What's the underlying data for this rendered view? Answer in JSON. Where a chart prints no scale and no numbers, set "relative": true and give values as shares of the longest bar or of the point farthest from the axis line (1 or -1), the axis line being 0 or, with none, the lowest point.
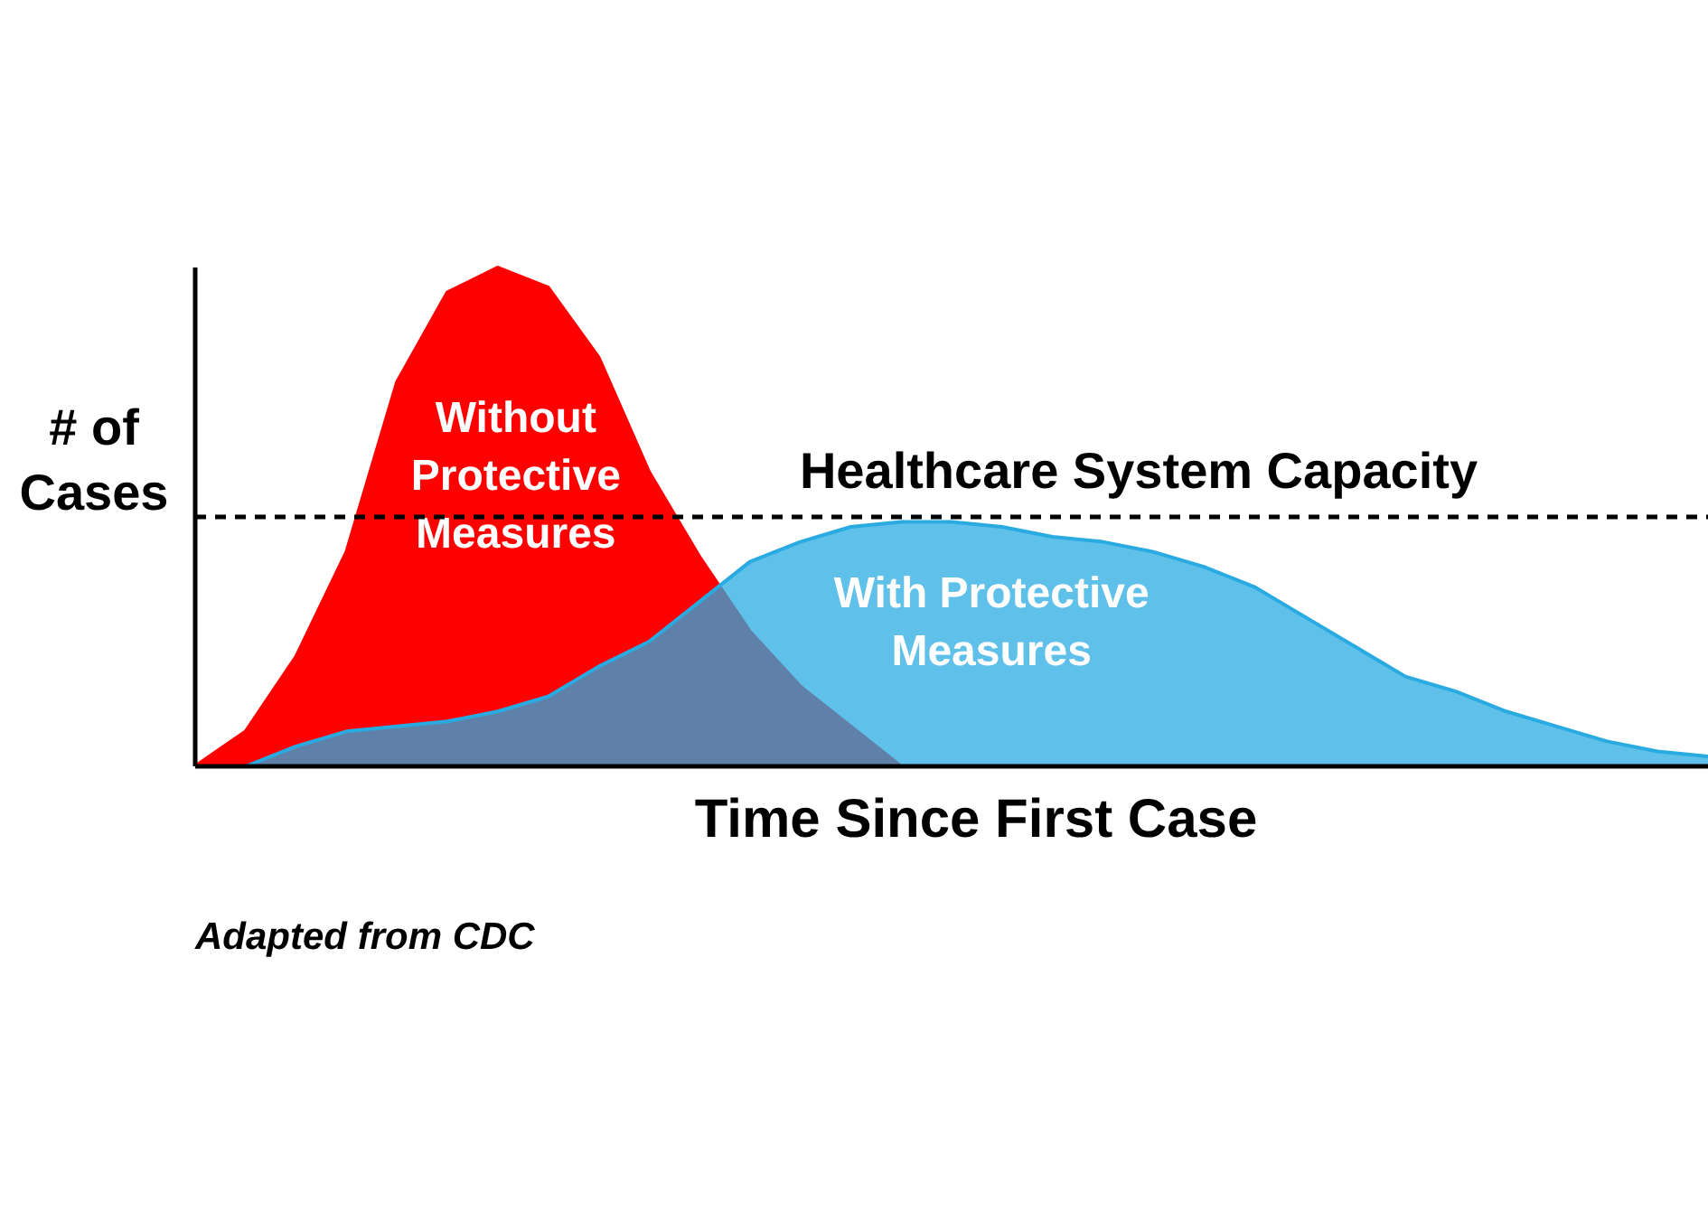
{
  "chart_data": {
    "type": "area",
    "relative": true,
    "xlabel": "Time Since First Case",
    "ylabel": "# of Cases",
    "categories": [
      null,
      null,
      null,
      null,
      null,
      null,
      null,
      null,
      null,
      null,
      null,
      null,
      null,
      null,
      null,
      null,
      null,
      null,
      null,
      null,
      null,
      null,
      null,
      null,
      null,
      null,
      null,
      null,
      null,
      null,
      null
    ],
    "series": [
      {
        "name": "Without Protective Measures",
        "color": "#ff0000",
        "values": [
          0,
          0.07,
          0.22,
          0.43,
          0.77,
          0.95,
          1.0,
          0.96,
          0.82,
          0.59,
          0.42,
          0.27,
          0.16,
          0.08,
          0,
          0,
          0,
          0,
          0,
          0,
          0,
          0,
          0,
          0,
          0,
          0,
          0,
          0,
          0,
          0,
          0
        ]
      },
      {
        "name": "With Protective Measures",
        "color": "#29abe2",
        "values": [
          0,
          0,
          0.04,
          0.07,
          0.08,
          0.09,
          0.11,
          0.14,
          0.2,
          0.25,
          0.33,
          0.41,
          0.45,
          0.48,
          0.49,
          0.49,
          0.48,
          0.46,
          0.45,
          0.43,
          0.4,
          0.36,
          0.3,
          0.24,
          0.18,
          0.15,
          0.11,
          0.08,
          0.05,
          0.03,
          0.02
        ]
      }
    ],
    "ref_lines": [
      {
        "axis": "y",
        "value": 0.5,
        "label": "Healthcare System Capacity",
        "line_style": "dashed",
        "color": "#000000"
      }
    ],
    "annotations": [
      "Adapted from CDC"
    ]
  }
}
